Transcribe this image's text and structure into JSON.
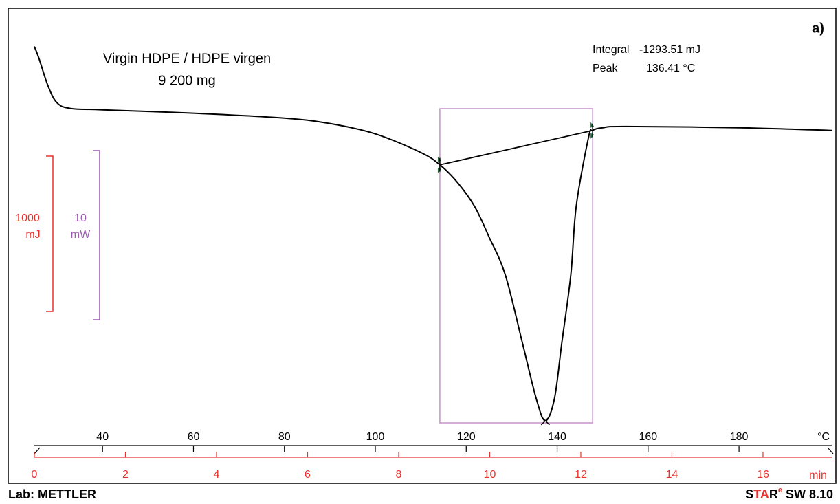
{
  "chart_data": {
    "type": "line",
    "label": "a)",
    "title": "Virgin HDPE / HDPE virgen",
    "subtitle": "9 200 mg",
    "x": [
      25,
      26,
      28,
      30,
      33,
      40,
      60,
      80,
      90,
      100,
      110,
      114.2,
      118,
      121.8,
      125,
      128.6,
      132.4,
      135.4,
      137.4,
      139.4,
      141,
      143,
      144.2,
      146.9,
      147.8,
      150,
      155,
      180,
      200.4
    ],
    "series": [
      {
        "color": "#000000",
        "values": [
          3.74,
          3.05,
          1.42,
          0.41,
          0.08,
          0,
          -0.2,
          -0.49,
          -0.81,
          -1.42,
          -2.52,
          -3.25,
          -4.27,
          -5.69,
          -7.5,
          -9.76,
          -13.82,
          -17.07,
          -18.37,
          -17.07,
          -13.82,
          -9.76,
          -5.69,
          -1.63,
          -1.22,
          -1.06,
          -0.98,
          -1.06,
          -1.22
        ]
      }
    ],
    "xlim": [
      25,
      200.4
    ],
    "xticks": [
      40,
      60,
      80,
      100,
      120,
      140,
      160,
      180
    ],
    "x_unit": "°C",
    "x2lim": [
      0,
      17.51
    ],
    "x2ticks": [
      0,
      2,
      4,
      6,
      8,
      10,
      12,
      14,
      16
    ],
    "x2_unit": "min",
    "x2_color": "#e8302c",
    "ylim": [
      -18.7,
      6.0
    ],
    "integration_limits": [
      114.2,
      147.8
    ],
    "integration_box_color": "#c592c8",
    "results": [
      {
        "label": "Integral",
        "value": "-1293.51 mJ"
      },
      {
        "label": "Peak",
        "value": "136.41 °C"
      }
    ],
    "scale_bars": [
      {
        "value": "1000",
        "unit": "mJ",
        "color": "#e8302c"
      },
      {
        "value": "10",
        "unit": "mW",
        "color": "#9b59b0"
      }
    ]
  },
  "footer": {
    "lab": "Lab: METTLER",
    "software": [
      "S",
      "TA",
      "R",
      "e",
      "SW 8.10"
    ]
  }
}
